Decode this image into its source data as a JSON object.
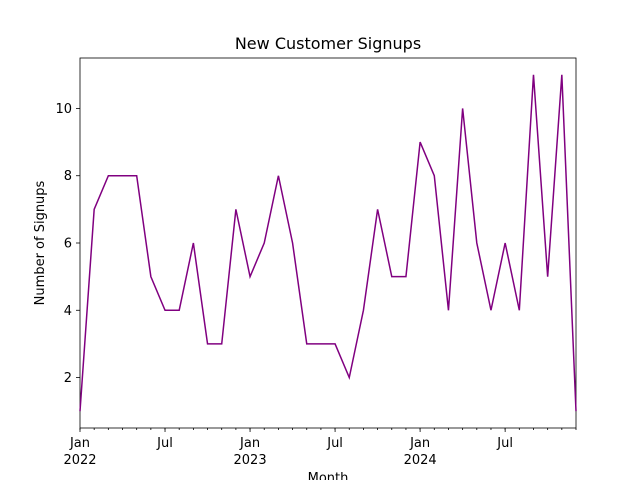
{
  "chart_data": {
    "type": "line",
    "title": "New Customer Signups",
    "x_label": "Month",
    "y_label": "Number of Signups",
    "x": [
      "2022-01",
      "2022-02",
      "2022-03",
      "2022-04",
      "2022-05",
      "2022-06",
      "2022-07",
      "2022-08",
      "2022-09",
      "2022-10",
      "2022-11",
      "2022-12",
      "2023-01",
      "2023-02",
      "2023-03",
      "2023-04",
      "2023-05",
      "2023-06",
      "2023-07",
      "2023-08",
      "2023-09",
      "2023-10",
      "2023-11",
      "2023-12",
      "2024-01",
      "2024-02",
      "2024-03",
      "2024-04",
      "2024-05",
      "2024-06",
      "2024-07",
      "2024-08",
      "2024-09",
      "2024-10",
      "2024-11",
      "2024-12"
    ],
    "series": [
      {
        "name": "Signups",
        "color": "#800080",
        "values": [
          1,
          7,
          8,
          8,
          8,
          5,
          4,
          4,
          6,
          3,
          3,
          7,
          5,
          6,
          8,
          6,
          3,
          3,
          3,
          2,
          4,
          7,
          5,
          5,
          9,
          8,
          4,
          10,
          6,
          4,
          6,
          4,
          11,
          5,
          11,
          1
        ]
      }
    ],
    "xlim": [
      "2022-01",
      "2024-12"
    ],
    "xticks": [
      {
        "value": "2022-01",
        "label": "Jan",
        "year": "2022"
      },
      {
        "value": "2022-07",
        "label": "Jul"
      },
      {
        "value": "2023-01",
        "label": "Jan",
        "year": "2023"
      },
      {
        "value": "2023-07",
        "label": "Jul"
      },
      {
        "value": "2024-01",
        "label": "Jan",
        "year": "2024"
      },
      {
        "value": "2024-07",
        "label": "Jul"
      }
    ],
    "ylim": [
      0.5,
      11.5
    ],
    "yticks": [
      2,
      4,
      6,
      8,
      10
    ],
    "grid": false
  }
}
